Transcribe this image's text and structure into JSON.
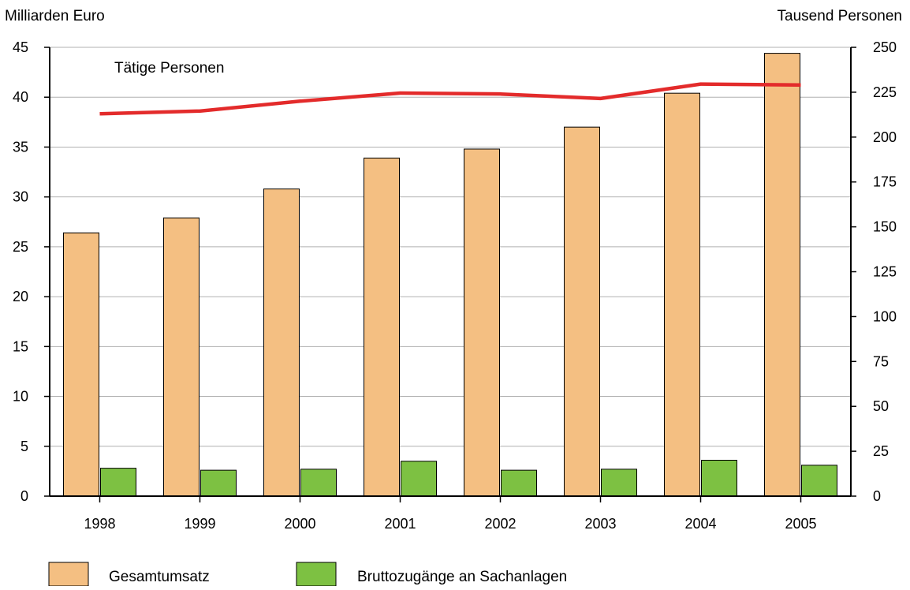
{
  "chart_data": {
    "type": "bar",
    "categories": [
      "1998",
      "1999",
      "2000",
      "2001",
      "2002",
      "2003",
      "2004",
      "2005"
    ],
    "series": [
      {
        "name": "Gesamtumsatz",
        "kind": "bar",
        "axis": "left",
        "color": "#f4bf82",
        "values": [
          26.4,
          27.9,
          30.8,
          33.9,
          34.8,
          37.0,
          40.4,
          44.4
        ]
      },
      {
        "name": "Bruttozugänge an Sachanlagen",
        "kind": "bar",
        "axis": "left",
        "color": "#7dc142",
        "values": [
          2.8,
          2.6,
          2.7,
          3.5,
          2.6,
          2.7,
          3.6,
          3.1
        ]
      },
      {
        "name": "Tätige Personen",
        "kind": "line",
        "axis": "right",
        "color": "#e32b2b",
        "values": [
          213,
          214.5,
          220,
          224.5,
          224,
          221.5,
          229.5,
          229
        ]
      }
    ],
    "ylabel_left": "Milliarden Euro",
    "ylabel_right": "Tausend Personen",
    "ylim_left": [
      0,
      45
    ],
    "ylim_right": [
      0,
      250
    ],
    "yticks_left": [
      "0",
      "5",
      "10",
      "15",
      "20",
      "25",
      "30",
      "35",
      "40",
      "45"
    ],
    "yticks_right": [
      "0",
      "25",
      "50",
      "75",
      "100",
      "125",
      "150",
      "175",
      "200",
      "225",
      "250"
    ],
    "line_label": "Tätige Personen",
    "grid": true,
    "legend_position": "bottom-left",
    "legend": [
      "Gesamtumsatz",
      "Bruttozugänge an Sachanlagen"
    ]
  }
}
